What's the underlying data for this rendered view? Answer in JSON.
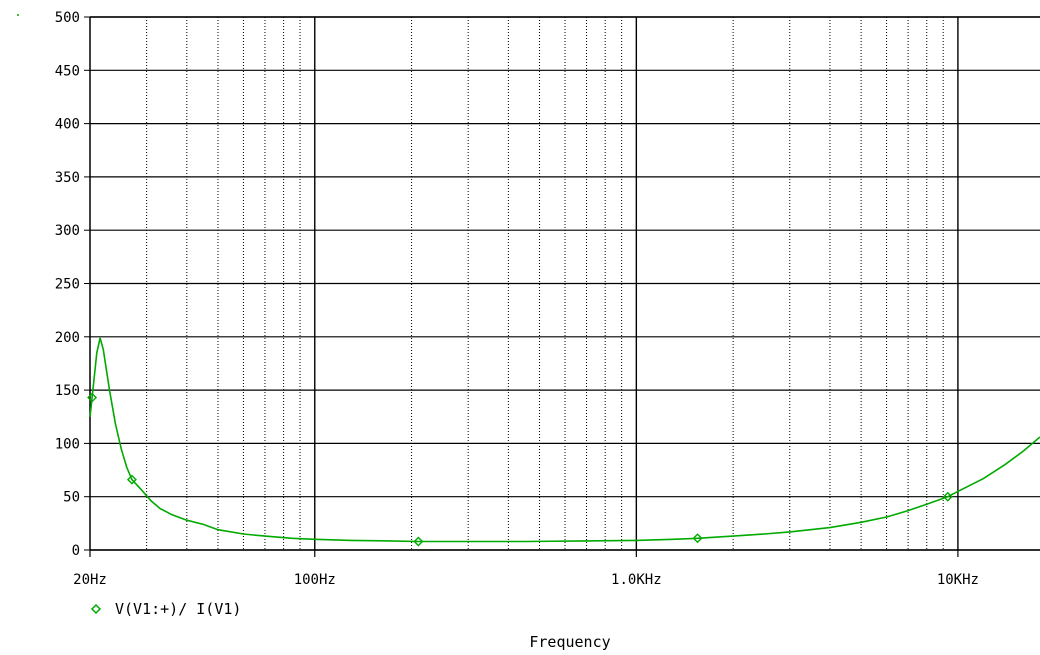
{
  "chart_data": {
    "type": "line",
    "title": "",
    "xlabel": "Frequency",
    "ylabel": "",
    "xscale": "log",
    "xlim": [
      20,
      18000
    ],
    "ylim": [
      0,
      500
    ],
    "grid": true,
    "legend_placement": "bottom-left",
    "x_ticks": [
      {
        "value": 20,
        "label": "20Hz"
      },
      {
        "value": 100,
        "label": "100Hz"
      },
      {
        "value": 1000,
        "label": "1.0KHz"
      },
      {
        "value": 10000,
        "label": "10KHz"
      }
    ],
    "y_ticks": [
      {
        "value": 0,
        "label": "0"
      },
      {
        "value": 50,
        "label": "50"
      },
      {
        "value": 100,
        "label": "100"
      },
      {
        "value": 150,
        "label": "150"
      },
      {
        "value": 200,
        "label": "200"
      },
      {
        "value": 250,
        "label": "250"
      },
      {
        "value": 300,
        "label": "300"
      },
      {
        "value": 350,
        "label": "350"
      },
      {
        "value": 400,
        "label": "400"
      },
      {
        "value": 450,
        "label": "450"
      },
      {
        "value": 500,
        "label": "500"
      }
    ],
    "series": [
      {
        "name": "V(V1:+)/ I(V1)",
        "color": "#00aa00",
        "marker": "diamond",
        "markers_at": [
          20.3,
          27,
          210,
          1550,
          9300
        ],
        "points": [
          [
            20,
            125
          ],
          [
            20.3,
            143
          ],
          [
            21,
            185
          ],
          [
            21.5,
            199
          ],
          [
            22,
            188
          ],
          [
            23,
            150
          ],
          [
            24,
            118
          ],
          [
            25,
            95
          ],
          [
            26,
            78
          ],
          [
            27,
            66
          ],
          [
            29,
            56
          ],
          [
            31,
            46
          ],
          [
            33,
            39
          ],
          [
            36,
            33
          ],
          [
            40,
            28
          ],
          [
            45,
            24
          ],
          [
            50,
            19
          ],
          [
            60,
            15
          ],
          [
            70,
            13
          ],
          [
            85,
            11
          ],
          [
            100,
            10
          ],
          [
            130,
            9
          ],
          [
            170,
            8.5
          ],
          [
            210,
            8
          ],
          [
            300,
            8
          ],
          [
            450,
            8
          ],
          [
            700,
            8.5
          ],
          [
            1000,
            9
          ],
          [
            1300,
            10
          ],
          [
            1550,
            11
          ],
          [
            2000,
            13
          ],
          [
            2500,
            15
          ],
          [
            3000,
            17
          ],
          [
            4000,
            21
          ],
          [
            5000,
            26
          ],
          [
            6000,
            31
          ],
          [
            7000,
            37
          ],
          [
            8000,
            43
          ],
          [
            9300,
            50
          ],
          [
            10000,
            55
          ],
          [
            12000,
            67
          ],
          [
            14000,
            80
          ],
          [
            16000,
            93
          ],
          [
            18000,
            106
          ]
        ]
      }
    ]
  }
}
